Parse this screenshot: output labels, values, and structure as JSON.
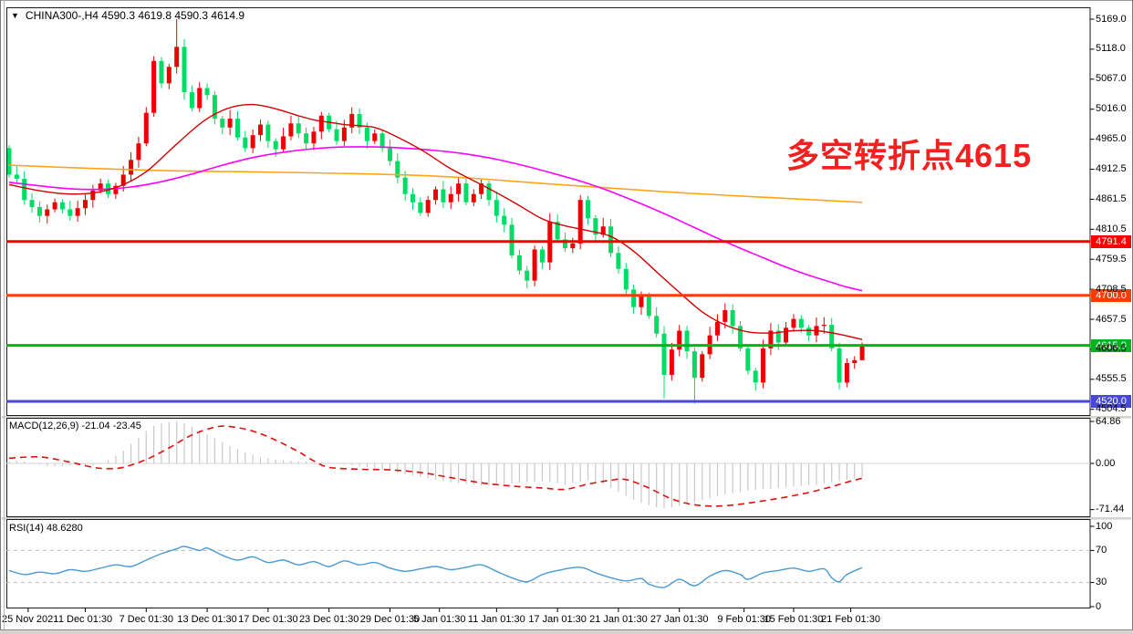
{
  "window": {
    "title": "CHINA300-,H4 4590.3 4619.8 4590.3 4614.9",
    "collapse_icon": "▼"
  },
  "annotation": {
    "text": "多空转折点4615",
    "color": "#F32020"
  },
  "panels": {
    "macd": {
      "label": "MACD(12,26,9) -21.04 -23.45"
    },
    "rsi": {
      "label": "RSI(14) 48.6280"
    }
  },
  "chart_data": {
    "type": "candlestick",
    "title": "CHINA300- H4",
    "symbol": "CHINA300-",
    "timeframe": "H4",
    "current_ohlc": {
      "open": "4590.3",
      "high": "4619.8",
      "low": "4590.3",
      "close": "4614.9"
    },
    "price_axis": {
      "tick_labels": [
        "5169.0",
        "5118.0",
        "5067.0",
        "5016.0",
        "4965.0",
        "4912.5",
        "4861.5",
        "4810.5",
        "4759.5",
        "4708.5",
        "4657.5",
        "4606.5",
        "4555.5",
        "4504.5"
      ],
      "range_top": 5189,
      "range_bottom": 4497
    },
    "levels": [
      {
        "price": 4791.4,
        "label": "4791.4",
        "color": "#FF0000"
      },
      {
        "price": 4700.0,
        "label": "4700.0",
        "color": "#FF3C00"
      },
      {
        "price": 4615.0,
        "label": "4615.0",
        "color": "#00B41E"
      },
      {
        "price": 4520.0,
        "label": "4520.0",
        "color": "#4848D8"
      }
    ],
    "candles": {
      "up_color": "#EE0000",
      "down_color": "#00DC64",
      "first_open": 4950,
      "closes": [
        4905,
        4898,
        4862,
        4850,
        4835,
        4846,
        4858,
        4846,
        4835,
        4848,
        4862,
        4878,
        4890,
        4872,
        4886,
        4905,
        4930,
        4958,
        5010,
        5098,
        5060,
        5088,
        5122,
        5045,
        5018,
        5052,
        5040,
        5000,
        4985,
        5000,
        4968,
        4950,
        4972,
        4990,
        4962,
        4948,
        4970,
        4992,
        4975,
        4958,
        4978,
        5005,
        4982,
        4962,
        4985,
        5008,
        4985,
        4962,
        4975,
        4950,
        4928,
        4900,
        4872,
        4858,
        4840,
        4862,
        4880,
        4858,
        4872,
        4890,
        4858,
        4872,
        4890,
        4862,
        4835,
        4820,
        4768,
        4742,
        4725,
        4778,
        4756,
        4825,
        4795,
        4780,
        4788,
        4862,
        4831,
        4803,
        4817,
        4772,
        4745,
        4710,
        4680,
        4700,
        4665,
        4635,
        4565,
        4608,
        4640,
        4605,
        4560,
        4600,
        4632,
        4655,
        4675,
        4648,
        4610,
        4572,
        4552,
        4610,
        4640,
        4620,
        4645,
        4660,
        4645,
        4632,
        4648,
        4650,
        4610,
        4552,
        4585,
        4590,
        4615
      ],
      "wick_overrides": {
        "22": {
          "high": 5169
        },
        "68": {
          "low": 4712
        },
        "86": {
          "low": 4525
        },
        "90": {
          "low": 4516
        },
        "98": {
          "low": 4538
        },
        "109": {
          "low": 4540
        },
        "112": {
          "high": 4620,
          "low": 4590
        }
      }
    },
    "moving_averages": [
      {
        "name": "ma-slow",
        "color": "#FFA519",
        "width": 1.6,
        "points": [
          [
            0,
            4921
          ],
          [
            10,
            4916
          ],
          [
            20,
            4912
          ],
          [
            30,
            4910
          ],
          [
            40,
            4908
          ],
          [
            48,
            4906
          ],
          [
            55,
            4903
          ],
          [
            62,
            4898
          ],
          [
            70,
            4890
          ],
          [
            78,
            4883
          ],
          [
            86,
            4876
          ],
          [
            94,
            4870
          ],
          [
            100,
            4866
          ],
          [
            106,
            4862
          ],
          [
            112,
            4858
          ]
        ]
      },
      {
        "name": "ma-mid",
        "color": "#FF00FF",
        "width": 1.6,
        "points": [
          [
            0,
            4892
          ],
          [
            4,
            4886
          ],
          [
            8,
            4881
          ],
          [
            12,
            4880
          ],
          [
            16,
            4884
          ],
          [
            20,
            4893
          ],
          [
            24,
            4906
          ],
          [
            28,
            4921
          ],
          [
            32,
            4934
          ],
          [
            36,
            4943
          ],
          [
            40,
            4949
          ],
          [
            44,
            4952
          ],
          [
            48,
            4952
          ],
          [
            52,
            4950
          ],
          [
            56,
            4946
          ],
          [
            60,
            4940
          ],
          [
            64,
            4931
          ],
          [
            68,
            4919
          ],
          [
            72,
            4905
          ],
          [
            75,
            4894
          ],
          [
            78,
            4881
          ],
          [
            81,
            4866
          ],
          [
            84,
            4850
          ],
          [
            87,
            4833
          ],
          [
            90,
            4815
          ],
          [
            93,
            4797
          ],
          [
            96,
            4780
          ],
          [
            99,
            4764
          ],
          [
            102,
            4748
          ],
          [
            105,
            4734
          ],
          [
            108,
            4722
          ],
          [
            110,
            4714
          ],
          [
            112,
            4708
          ]
        ]
      },
      {
        "name": "ma-fast",
        "color": "#D20000",
        "width": 1.4,
        "points": [
          [
            0,
            4888
          ],
          [
            3,
            4880
          ],
          [
            6,
            4874
          ],
          [
            9,
            4872
          ],
          [
            12,
            4876
          ],
          [
            15,
            4888
          ],
          [
            18,
            4910
          ],
          [
            21,
            4945
          ],
          [
            24,
            4980
          ],
          [
            26,
            5000
          ],
          [
            28,
            5014
          ],
          [
            30,
            5022
          ],
          [
            32,
            5024
          ],
          [
            34,
            5020
          ],
          [
            36,
            5013
          ],
          [
            38,
            5005
          ],
          [
            40,
            4998
          ],
          [
            42,
            4994
          ],
          [
            44,
            4990
          ],
          [
            46,
            4988
          ],
          [
            48,
            4985
          ],
          [
            50,
            4975
          ],
          [
            54,
            4948
          ],
          [
            58,
            4915
          ],
          [
            62,
            4888
          ],
          [
            66,
            4860
          ],
          [
            70,
            4830
          ],
          [
            73,
            4818
          ],
          [
            76,
            4810
          ],
          [
            79,
            4800
          ],
          [
            82,
            4775
          ],
          [
            85,
            4740
          ],
          [
            88,
            4705
          ],
          [
            91,
            4672
          ],
          [
            94,
            4650
          ],
          [
            97,
            4638
          ],
          [
            100,
            4636
          ],
          [
            103,
            4640
          ],
          [
            106,
            4640
          ],
          [
            109,
            4634
          ],
          [
            112,
            4625
          ]
        ]
      }
    ],
    "macd": {
      "hist_color": "#C9C9C9",
      "signal_color": "#E01010",
      "tick_labels": [
        {
          "v": 64.86,
          "label": "64.86"
        },
        {
          "v": 0,
          "label": "0.00"
        },
        {
          "v": -71.44,
          "label": "-71.44"
        }
      ],
      "histogram": [
        3,
        4,
        3,
        1,
        -2,
        -4,
        -5,
        -4,
        -3,
        -4,
        -5,
        -3,
        1,
        6,
        12,
        20,
        30,
        40,
        50,
        58,
        62,
        64,
        65,
        62,
        57,
        51,
        45,
        39,
        33,
        27,
        22,
        17,
        13,
        10,
        8,
        6,
        5,
        4,
        3,
        3,
        2,
        2,
        1,
        -1,
        -2,
        -3,
        -5,
        -6,
        -8,
        -10,
        -12,
        -14,
        -17,
        -19,
        -21,
        -23,
        -25,
        -27,
        -29,
        -31,
        -32,
        -33,
        -34,
        -34,
        -33,
        -32,
        -31,
        -30,
        -29,
        -28,
        -28,
        -29,
        -31,
        -33,
        -30,
        -28,
        -26,
        -28,
        -32,
        -38,
        -44,
        -50,
        -56,
        -61,
        -65,
        -68,
        -69,
        -68,
        -66,
        -63,
        -60,
        -57,
        -54,
        -51,
        -48,
        -46,
        -44,
        -42,
        -41,
        -40,
        -39,
        -38,
        -37,
        -36,
        -35,
        -34,
        -33,
        -31,
        -29,
        -27,
        -25,
        -23,
        -21
      ],
      "signal_points": [
        [
          0,
          8
        ],
        [
          4,
          10
        ],
        [
          8,
          2
        ],
        [
          11,
          -6
        ],
        [
          13,
          -8
        ],
        [
          15,
          -6
        ],
        [
          18,
          6
        ],
        [
          21,
          24
        ],
        [
          24,
          44
        ],
        [
          27,
          56
        ],
        [
          29,
          57
        ],
        [
          32,
          50
        ],
        [
          35,
          36
        ],
        [
          38,
          18
        ],
        [
          40,
          4
        ],
        [
          42,
          -6
        ],
        [
          46,
          -9
        ],
        [
          50,
          -10
        ],
        [
          54,
          -14
        ],
        [
          58,
          -22
        ],
        [
          62,
          -30
        ],
        [
          66,
          -35
        ],
        [
          70,
          -38
        ],
        [
          73,
          -40
        ],
        [
          76,
          -32
        ],
        [
          79,
          -26
        ],
        [
          81,
          -25
        ],
        [
          84,
          -38
        ],
        [
          87,
          -55
        ],
        [
          90,
          -64
        ],
        [
          93,
          -66
        ],
        [
          96,
          -63
        ],
        [
          99,
          -58
        ],
        [
          102,
          -52
        ],
        [
          105,
          -45
        ],
        [
          108,
          -36
        ],
        [
          110,
          -29
        ],
        [
          112,
          -23
        ]
      ]
    },
    "rsi": {
      "line_color": "#4A9AD2",
      "tick_labels": [
        {
          "v": 100,
          "label": "100"
        },
        {
          "v": 70,
          "label": "70"
        },
        {
          "v": 30,
          "label": "30"
        },
        {
          "v": 0,
          "label": "0"
        }
      ],
      "guide_levels": [
        70,
        30
      ],
      "points": [
        [
          0,
          45
        ],
        [
          2,
          40
        ],
        [
          4,
          43
        ],
        [
          6,
          41
        ],
        [
          8,
          46
        ],
        [
          10,
          44
        ],
        [
          12,
          48
        ],
        [
          14,
          52
        ],
        [
          16,
          50
        ],
        [
          18,
          58
        ],
        [
          20,
          66
        ],
        [
          22,
          72
        ],
        [
          23,
          75
        ],
        [
          25,
          70
        ],
        [
          26,
          73
        ],
        [
          28,
          64
        ],
        [
          30,
          58
        ],
        [
          32,
          62
        ],
        [
          34,
          55
        ],
        [
          36,
          58
        ],
        [
          38,
          52
        ],
        [
          40,
          56
        ],
        [
          42,
          50
        ],
        [
          44,
          57
        ],
        [
          46,
          52
        ],
        [
          48,
          55
        ],
        [
          50,
          48
        ],
        [
          52,
          44
        ],
        [
          54,
          47
        ],
        [
          56,
          50
        ],
        [
          58,
          46
        ],
        [
          60,
          49
        ],
        [
          62,
          52
        ],
        [
          64,
          44
        ],
        [
          66,
          36
        ],
        [
          68,
          31
        ],
        [
          70,
          40
        ],
        [
          72,
          45
        ],
        [
          75,
          49
        ],
        [
          77,
          42
        ],
        [
          79,
          36
        ],
        [
          81,
          32
        ],
        [
          83,
          35
        ],
        [
          84,
          28
        ],
        [
          86,
          24
        ],
        [
          88,
          34
        ],
        [
          90,
          26
        ],
        [
          92,
          38
        ],
        [
          94,
          45
        ],
        [
          96,
          40
        ],
        [
          97,
          34
        ],
        [
          99,
          42
        ],
        [
          101,
          45
        ],
        [
          103,
          48
        ],
        [
          105,
          44
        ],
        [
          107,
          47
        ],
        [
          108,
          36
        ],
        [
          109,
          31
        ],
        [
          110,
          40
        ],
        [
          112,
          48.6
        ]
      ]
    },
    "date_axis": {
      "ticks": [
        {
          "label": "25 Nov 2021",
          "i": 2.5
        },
        {
          "label": "1 Dec 01:30",
          "i": 10
        },
        {
          "label": "7 Dec 01:30",
          "i": 18
        },
        {
          "label": "13 Dec 01:30",
          "i": 26
        },
        {
          "label": "17 Dec 01:30",
          "i": 34
        },
        {
          "label": "23 Dec 01:30",
          "i": 42
        },
        {
          "label": "29 Dec 01:30",
          "i": 50
        },
        {
          "label": "5 Jan 01:30",
          "i": 56.5
        },
        {
          "label": "11 Jan 01:30",
          "i": 64
        },
        {
          "label": "17 Jan 01:30",
          "i": 72
        },
        {
          "label": "21 Jan 01:30",
          "i": 80
        },
        {
          "label": "27 Jan 01:30",
          "i": 88
        },
        {
          "label": "9 Feb 01:30",
          "i": 96.5
        },
        {
          "label": "15 Feb 01:30",
          "i": 103
        },
        {
          "label": "21 Feb 01:30",
          "i": 110.5
        }
      ]
    }
  }
}
